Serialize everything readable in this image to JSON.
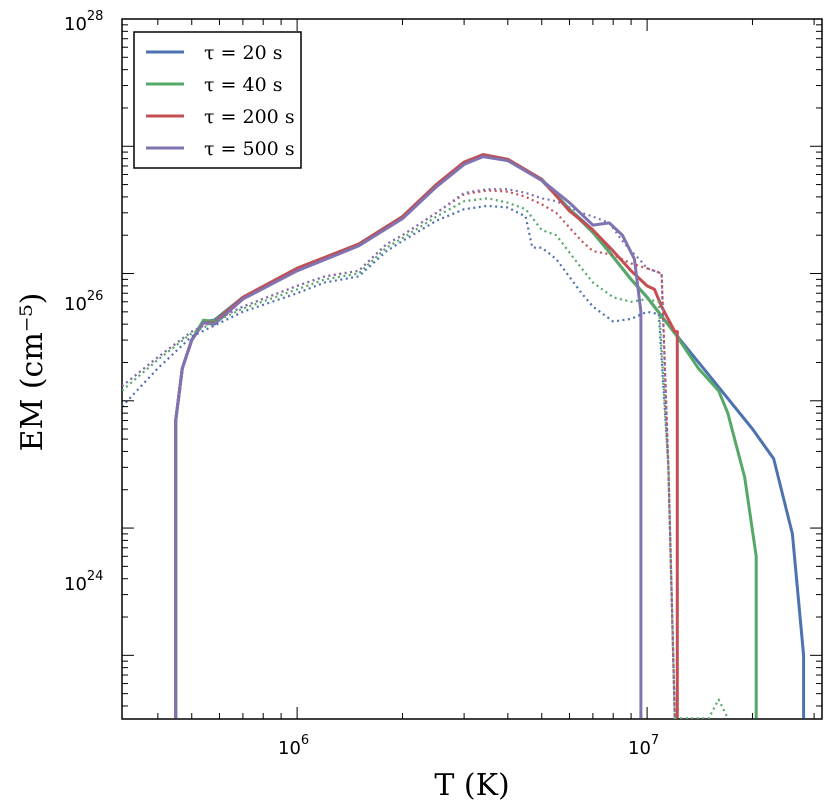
{
  "chart_data": {
    "type": "line",
    "xlabel": "T (K)",
    "ylabel": "EM (cm⁻⁵)",
    "xscale": "log",
    "yscale": "log",
    "xlim": [
      316000,
      31600000
    ],
    "ylim": [
      3.16e+22,
      1e+28
    ],
    "x_ticks": [
      {
        "base": "10",
        "exp": "6"
      },
      {
        "base": "10",
        "exp": "7"
      }
    ],
    "y_ticks": [
      {
        "base": "10",
        "exp": "28"
      },
      {
        "base": "10",
        "exp": "26"
      },
      {
        "base": "10",
        "exp": "24"
      }
    ],
    "legend": {
      "placement": "top-left",
      "entries": [
        {
          "label": "τ = 20 s",
          "color": "#4c72b0"
        },
        {
          "label": "τ = 40 s",
          "color": "#55a868"
        },
        {
          "label": "τ = 200 s",
          "color": "#c44e52"
        },
        {
          "label": "τ = 500 s",
          "color": "#8172b2"
        }
      ]
    },
    "series": [
      {
        "name": "τ=20 s",
        "style": "solid",
        "color": "#4c72b0",
        "points": [
          [
            450000.0,
            3.2e+22
          ],
          [
            450000.0,
            7e+24
          ],
          [
            470000.0,
            1.8e+25
          ],
          [
            500000.0,
            3e+25
          ],
          [
            540000.0,
            4.2e+25
          ],
          [
            580000.0,
            4.3e+25
          ],
          [
            700000.0,
            6.5e+25
          ],
          [
            1000000.0,
            1.1e+26
          ],
          [
            1500000.0,
            1.7e+26
          ],
          [
            2000000.0,
            2.8e+26
          ],
          [
            2500000.0,
            5e+26
          ],
          [
            3000000.0,
            7.5e+26
          ],
          [
            3400000.0,
            8.5e+26
          ],
          [
            4000000.0,
            7.8e+26
          ],
          [
            5000000.0,
            5.4e+26
          ],
          [
            6000000.0,
            3.2e+26
          ],
          [
            7000000.0,
            2.2e+26
          ],
          [
            8000000.0,
            1.35e+26
          ],
          [
            9000000.0,
            9e+25
          ],
          [
            10000000.0,
            6.5e+25
          ],
          [
            12000000.0,
            3.4e+25
          ],
          [
            15000000.0,
            1.6e+25
          ],
          [
            20000000.0,
            6e+24
          ],
          [
            23000000.0,
            3.5e+24
          ],
          [
            26000000.0,
            9e+23
          ],
          [
            28000000.0,
            1e+23
          ],
          [
            28000000.0,
            3.2e+22
          ]
        ]
      },
      {
        "name": "τ=40 s",
        "style": "solid",
        "color": "#55a868",
        "points": [
          [
            450000.0,
            3.2e+22
          ],
          [
            450000.0,
            7e+24
          ],
          [
            470000.0,
            1.8e+25
          ],
          [
            500000.0,
            3e+25
          ],
          [
            540000.0,
            4.3e+25
          ],
          [
            580000.0,
            4.2e+25
          ],
          [
            700000.0,
            6.5e+25
          ],
          [
            1000000.0,
            1.1e+26
          ],
          [
            1500000.0,
            1.7e+26
          ],
          [
            2000000.0,
            2.8e+26
          ],
          [
            2500000.0,
            5e+26
          ],
          [
            3000000.0,
            7.5e+26
          ],
          [
            3400000.0,
            8.6e+26
          ],
          [
            4000000.0,
            7.9e+26
          ],
          [
            5000000.0,
            5.5e+26
          ],
          [
            6000000.0,
            3.2e+26
          ],
          [
            7000000.0,
            2.1e+26
          ],
          [
            8000000.0,
            1.35e+26
          ],
          [
            9000000.0,
            9e+25
          ],
          [
            10000000.0,
            6.5e+25
          ],
          [
            12000000.0,
            3.4e+25
          ],
          [
            14000000.0,
            1.8e+25
          ],
          [
            16000000.0,
            1.2e+25
          ],
          [
            17000000.0,
            8e+24
          ],
          [
            19000000.0,
            2.5e+24
          ],
          [
            20500000.0,
            6e+23
          ],
          [
            20500000.0,
            3.2e+22
          ]
        ]
      },
      {
        "name": "τ=200 s",
        "style": "solid",
        "color": "#c44e52",
        "points": [
          [
            450000.0,
            3.2e+22
          ],
          [
            450000.0,
            7e+24
          ],
          [
            470000.0,
            1.8e+25
          ],
          [
            500000.0,
            3e+25
          ],
          [
            540000.0,
            4.1e+25
          ],
          [
            580000.0,
            4.1e+25
          ],
          [
            700000.0,
            6.5e+25
          ],
          [
            1000000.0,
            1.1e+26
          ],
          [
            1500000.0,
            1.7e+26
          ],
          [
            2000000.0,
            2.8e+26
          ],
          [
            2500000.0,
            5e+26
          ],
          [
            3000000.0,
            7.5e+26
          ],
          [
            3400000.0,
            8.6e+26
          ],
          [
            4000000.0,
            7.9e+26
          ],
          [
            5000000.0,
            5.5e+26
          ],
          [
            6000000.0,
            3.1e+26
          ],
          [
            7000000.0,
            2.2e+26
          ],
          [
            8000000.0,
            1.5e+26
          ],
          [
            9000000.0,
            1.05e+26
          ],
          [
            10000000.0,
            8e+25
          ],
          [
            10500000.0,
            7.5e+25
          ],
          [
            11000000.0,
            5.5e+25
          ],
          [
            12000000.0,
            3.5e+25
          ],
          [
            12200000.0,
            3.5e+25
          ],
          [
            12200000.0,
            3.2e+22
          ]
        ]
      },
      {
        "name": "τ=500 s",
        "style": "solid",
        "color": "#8172b2",
        "points": [
          [
            450000.0,
            3.2e+22
          ],
          [
            450000.0,
            7e+24
          ],
          [
            470000.0,
            1.8e+25
          ],
          [
            500000.0,
            3e+25
          ],
          [
            540000.0,
            4.1e+25
          ],
          [
            580000.0,
            4e+25
          ],
          [
            700000.0,
            6.3e+25
          ],
          [
            1000000.0,
            1.05e+26
          ],
          [
            1500000.0,
            1.65e+26
          ],
          [
            2000000.0,
            2.7e+26
          ],
          [
            2500000.0,
            4.8e+26
          ],
          [
            3000000.0,
            7.2e+26
          ],
          [
            3400000.0,
            8.3e+26
          ],
          [
            4000000.0,
            7.7e+26
          ],
          [
            5000000.0,
            5.4e+26
          ],
          [
            6000000.0,
            3.6e+26
          ],
          [
            7000000.0,
            2.4e+26
          ],
          [
            7800000.0,
            2.5e+26
          ],
          [
            8500000.0,
            2e+26
          ],
          [
            9200000.0,
            1.3e+26
          ],
          [
            9600000.0,
            5e+25
          ],
          [
            9600000.0,
            3.2e+22
          ]
        ]
      },
      {
        "name": "τ=20 s (dotted)",
        "style": "dotted",
        "color": "#4c72b0",
        "points": [
          [
            316000.0,
            9e+24
          ],
          [
            400000.0,
            1.8e+25
          ],
          [
            500000.0,
            3.2e+25
          ],
          [
            700000.0,
            5e+25
          ],
          [
            1000000.0,
            7e+25
          ],
          [
            1200000.0,
            8.5e+25
          ],
          [
            1500000.0,
            9.5e+25
          ],
          [
            1800000.0,
            1.5e+26
          ],
          [
            2000000.0,
            1.8e+26
          ],
          [
            2500000.0,
            2.6e+26
          ],
          [
            3000000.0,
            3.2e+26
          ],
          [
            3500000.0,
            3.4e+26
          ],
          [
            4000000.0,
            3.3e+26
          ],
          [
            4500000.0,
            2.8e+26
          ],
          [
            4700000.0,
            1.6e+26
          ],
          [
            5000000.0,
            1.6e+26
          ],
          [
            5500000.0,
            1.3e+26
          ],
          [
            6500000.0,
            7e+25
          ],
          [
            7000000.0,
            5.5e+25
          ],
          [
            8000000.0,
            4.2e+25
          ],
          [
            9000000.0,
            4.4e+25
          ],
          [
            10000000.0,
            5e+25
          ],
          [
            10800000.0,
            4.8e+25
          ],
          [
            11500000.0,
            3e+24
          ],
          [
            12000000.0,
            3.2e+22
          ]
        ]
      },
      {
        "name": "τ=40 s (dotted)",
        "style": "dotted",
        "color": "#55a868",
        "points": [
          [
            316000.0,
            1.2e+25
          ],
          [
            400000.0,
            2.1e+25
          ],
          [
            500000.0,
            3.4e+25
          ],
          [
            700000.0,
            5.3e+25
          ],
          [
            1000000.0,
            7.5e+25
          ],
          [
            1200000.0,
            9e+25
          ],
          [
            1500000.0,
            1e+26
          ],
          [
            1800000.0,
            1.6e+26
          ],
          [
            2000000.0,
            1.9e+26
          ],
          [
            2500000.0,
            2.8e+26
          ],
          [
            3000000.0,
            3.7e+26
          ],
          [
            3500000.0,
            3.9e+26
          ],
          [
            4000000.0,
            3.6e+26
          ],
          [
            4500000.0,
            3.2e+26
          ],
          [
            5000000.0,
            2.2e+26
          ],
          [
            5500000.0,
            2e+26
          ],
          [
            6500000.0,
            1.1e+26
          ],
          [
            7000000.0,
            8.5e+25
          ],
          [
            8000000.0,
            6.5e+25
          ],
          [
            9000000.0,
            6e+25
          ],
          [
            10000000.0,
            6.3e+25
          ],
          [
            10800000.0,
            6e+25
          ],
          [
            11500000.0,
            3e+24
          ],
          [
            12000000.0,
            3.2e+22
          ],
          [
            15000000.0,
            3.2e+22
          ],
          [
            16000000.0,
            4.5e+22
          ],
          [
            17000000.0,
            3.2e+22
          ]
        ]
      },
      {
        "name": "τ=200 s (dotted)",
        "style": "dotted",
        "color": "#c44e52",
        "points": [
          [
            316000.0,
            1.3e+25
          ],
          [
            400000.0,
            2.2e+25
          ],
          [
            500000.0,
            3.5e+25
          ],
          [
            700000.0,
            5.5e+25
          ],
          [
            1000000.0,
            8e+25
          ],
          [
            1200000.0,
            9.5e+25
          ],
          [
            1500000.0,
            1.05e+26
          ],
          [
            1800000.0,
            1.7e+26
          ],
          [
            2000000.0,
            2e+26
          ],
          [
            2500000.0,
            3e+26
          ],
          [
            3000000.0,
            4.2e+26
          ],
          [
            3500000.0,
            4.5e+26
          ],
          [
            4000000.0,
            4.4e+26
          ],
          [
            4500000.0,
            4e+26
          ],
          [
            5000000.0,
            3.5e+26
          ],
          [
            5500000.0,
            3e+26
          ],
          [
            6500000.0,
            1.8e+26
          ],
          [
            7000000.0,
            1.5e+26
          ],
          [
            8000000.0,
            1.4e+26
          ],
          [
            9000000.0,
            1.2e+26
          ],
          [
            10000000.0,
            1.1e+26
          ],
          [
            11000000.0,
            1e+26
          ],
          [
            11500000.0,
            3e+24
          ],
          [
            12000000.0,
            3.2e+22
          ]
        ]
      },
      {
        "name": "τ=500 s (dotted)",
        "style": "dotted",
        "color": "#8172b2",
        "points": [
          [
            316000.0,
            1.3e+25
          ],
          [
            400000.0,
            2.2e+25
          ],
          [
            500000.0,
            3.5e+25
          ],
          [
            700000.0,
            5.5e+25
          ],
          [
            1000000.0,
            8e+25
          ],
          [
            1200000.0,
            9.5e+25
          ],
          [
            1500000.0,
            1.05e+26
          ],
          [
            1800000.0,
            1.7e+26
          ],
          [
            2000000.0,
            2e+26
          ],
          [
            2500000.0,
            3e+26
          ],
          [
            3000000.0,
            4.3e+26
          ],
          [
            3500000.0,
            4.6e+26
          ],
          [
            4000000.0,
            4.6e+26
          ],
          [
            4500000.0,
            4.3e+26
          ],
          [
            5000000.0,
            3.9e+26
          ],
          [
            5500000.0,
            3.7e+26
          ],
          [
            6500000.0,
            3e+26
          ],
          [
            7000000.0,
            2.8e+26
          ],
          [
            7800000.0,
            2.5e+26
          ],
          [
            8500000.0,
            1.8e+26
          ],
          [
            9000000.0,
            1.5e+26
          ],
          [
            9500000.0,
            1.3e+26
          ],
          [
            10000000.0,
            1.1e+26
          ],
          [
            11000000.0,
            1e+26
          ],
          [
            11500000.0,
            3e+24
          ],
          [
            12000000.0,
            3.2e+22
          ]
        ]
      }
    ]
  }
}
